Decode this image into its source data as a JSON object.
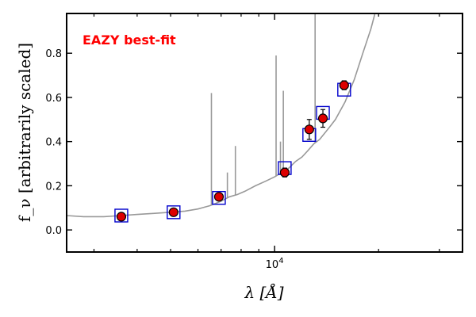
{
  "chart_data": {
    "type": "scatter",
    "title": "",
    "xlabel": "λ [Å]",
    "ylabel": "f_ν [arbitrarily scaled]",
    "x_scale": "log",
    "xlim": [
      2500,
      35000
    ],
    "ylim": [
      -0.1,
      0.98
    ],
    "x_ticks": [
      {
        "value": 10000,
        "label": "10^4"
      }
    ],
    "x_minor_ticks": [
      3000,
      4000,
      5000,
      6000,
      7000,
      8000,
      9000,
      20000,
      30000
    ],
    "y_ticks": [
      0.0,
      0.2,
      0.4,
      0.6,
      0.8
    ],
    "grid": false,
    "annotations": [
      {
        "text": "EAZY best-fit",
        "color": "#ff0000",
        "position": "top-left"
      }
    ],
    "colors": {
      "model_line": "#999999",
      "model_photometry": "#0000cc",
      "observed": "#dd0000",
      "errorbar": "#000000"
    },
    "series": [
      {
        "type": "line",
        "role": "model-sed",
        "x": [
          2500,
          2800,
          3200,
          3600,
          4000,
          4500,
          5000,
          5500,
          6000,
          6500,
          7000,
          7400,
          7800,
          8200,
          8800,
          9400,
          10000,
          10500,
          11000,
          11500,
          12000,
          12500,
          13000,
          13500,
          14000,
          14500,
          15000,
          16000,
          17000,
          18000,
          19000,
          19500
        ],
        "y": [
          0.065,
          0.06,
          0.06,
          0.065,
          0.07,
          0.075,
          0.08,
          0.085,
          0.095,
          0.11,
          0.13,
          0.15,
          0.16,
          0.175,
          0.2,
          0.22,
          0.24,
          0.26,
          0.28,
          0.31,
          0.33,
          0.36,
          0.39,
          0.41,
          0.44,
          0.47,
          0.5,
          0.58,
          0.68,
          0.8,
          0.91,
          0.98
        ],
        "emission_lines": [
          {
            "x": 6563,
            "y": 0.62
          },
          {
            "x": 7300,
            "y": 0.26
          },
          {
            "x": 7700,
            "y": 0.38
          },
          {
            "x": 10100,
            "y": 0.79
          },
          {
            "x": 10400,
            "y": 0.4
          },
          {
            "x": 10600,
            "y": 0.63
          },
          {
            "x": 13100,
            "y": 0.98
          }
        ]
      },
      {
        "type": "scatter",
        "role": "model-photometry",
        "x": [
          3600,
          5100,
          6900,
          10700,
          12600,
          13800,
          15900
        ],
        "y": [
          0.065,
          0.08,
          0.145,
          0.28,
          0.43,
          0.53,
          0.635
        ]
      },
      {
        "type": "scatter",
        "role": "observed-photometry",
        "x": [
          3600,
          5100,
          6900,
          10700,
          12600,
          13800,
          15900
        ],
        "y": [
          0.06,
          0.08,
          0.15,
          0.26,
          0.455,
          0.505,
          0.655
        ],
        "err": [
          0.01,
          0.01,
          0.01,
          0.02,
          0.045,
          0.04,
          0.02
        ]
      }
    ]
  }
}
